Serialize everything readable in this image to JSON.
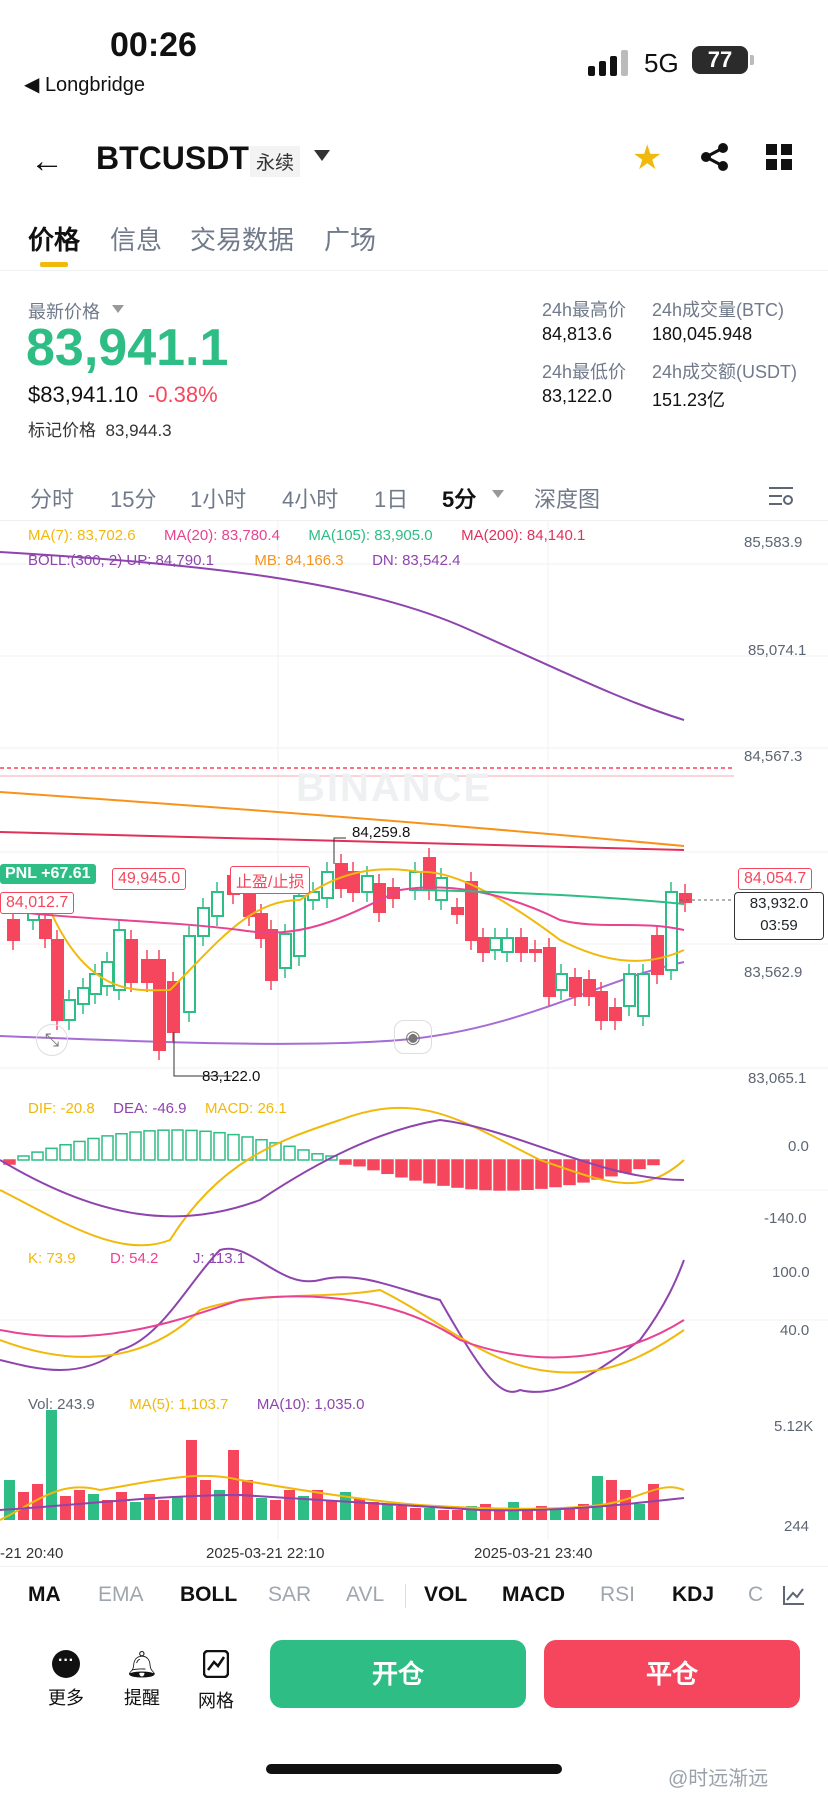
{
  "status": {
    "time": "00:26",
    "back_app": "◀ Longbridge",
    "network": "5G",
    "battery": "77"
  },
  "header": {
    "symbol": "BTCUSDT",
    "contract_type": "永续"
  },
  "tabs": [
    "价格",
    "信息",
    "交易数据",
    "广场"
  ],
  "price": {
    "label": "最新价格",
    "last": "83,941.1",
    "usd": "$83,941.10",
    "change": "-0.38%",
    "mark_label": "标记价格",
    "mark": "83,944.3",
    "stats": [
      {
        "label": "24h最高价",
        "value": "84,813.6"
      },
      {
        "label": "24h成交量(BTC)",
        "value": "180,045.948"
      },
      {
        "label": "24h最低价",
        "value": "83,122.0"
      },
      {
        "label": "24h成交额(USDT)",
        "value": "151.23亿"
      }
    ]
  },
  "timeframes": [
    "分时",
    "15分",
    "1小时",
    "4小时",
    "1日",
    "5分",
    "深度图"
  ],
  "main_chart": {
    "ma_legend": [
      {
        "text": "MA(7): 83,702.6",
        "color": "#f0b90b"
      },
      {
        "text": "MA(20): 83,780.4",
        "color": "#e84393"
      },
      {
        "text": "MA(105): 83,905.0",
        "color": "#2ebd85"
      },
      {
        "text": "MA(200): 84,140.1",
        "color": "#e0315a"
      }
    ],
    "boll_legend": [
      {
        "text": "BOLL:(300, 2)  UP: 84,790.1",
        "color": "#8e44ad"
      },
      {
        "text": "MB: 84,166.3",
        "color": "#f7931a"
      },
      {
        "text": "DN: 83,542.4",
        "color": "#8e44ad"
      }
    ],
    "axis": [
      "85,583.9",
      "85,074.1",
      "84,567.3",
      "83,562.9",
      "83,065.1"
    ],
    "watermark": "BINANCE",
    "high_marker": "84,259.8",
    "low_marker": "83,122.0",
    "pnl": "PNL +67.61",
    "entry": "84,012.7",
    "position_price": "49,945.0",
    "tp_sl": "止盈/止损",
    "upper_tag": "84,054.7",
    "current_tag": "83,932.0",
    "countdown": "03:59"
  },
  "macd": {
    "dif": "DIF: -20.8",
    "dea": "DEA: -46.9",
    "macd": "MACD: 26.1",
    "axis": [
      "0.0",
      "-140.0"
    ]
  },
  "kdj": {
    "k": "K: 73.9",
    "d": "D: 54.2",
    "j": "J: 113.1",
    "axis": [
      "100.0",
      "40.0"
    ]
  },
  "vol": {
    "vol": "Vol: 243.9",
    "ma5": "MA(5): 1,103.7",
    "ma10": "MA(10): 1,035.0",
    "axis": [
      "5.12K",
      "244"
    ]
  },
  "time_axis": [
    "-21 20:40",
    "2025-03-21 22:10",
    "2025-03-21 23:40"
  ],
  "indicator_tabs": [
    "MA",
    "EMA",
    "BOLL",
    "SAR",
    "AVL",
    "VOL",
    "MACD",
    "RSI",
    "KDJ",
    "C"
  ],
  "bottom": {
    "more": "更多",
    "alert": "提醒",
    "grid": "网格",
    "open": "开仓",
    "close": "平仓"
  },
  "watermark_bottom": "@时远渐远",
  "colors": {
    "up": "#2ebd85",
    "down": "#f6465d",
    "accent": "#f0b90b"
  }
}
